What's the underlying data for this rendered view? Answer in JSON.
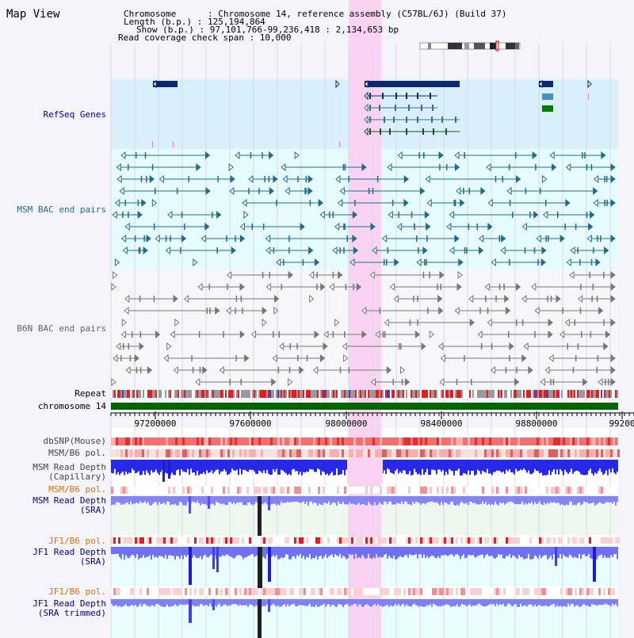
{
  "page_title": "Map View",
  "info": {
    "chromosome": "Chromosome      : Chromosome 14, reference assembly (C57BL/6J) (Build 37)",
    "length": "Length (b.p.) : 125,194,864",
    "show": "Show (b.p.) : 97,101,766-99,236,418 : 2,134,653 bp",
    "coverage": "Read coverage check span : 10,000"
  },
  "colors": {
    "refseq_band": "#d9f0fa",
    "bac_band": "#e6fbfd",
    "highlight": "#f9d3f1",
    "gene": "#0b2a6b",
    "msm_feature": "#236b88",
    "b6n_feature": "#777777",
    "chrom": "#006600",
    "depth_blue": "#2020e0",
    "depth_light": "#8888f0",
    "snp_red": "#f05050"
  },
  "tracks": [
    {
      "name": "refseq-genes-label",
      "text": "RefSeq Genes",
      "color": "#00008b",
      "top": 139
    },
    {
      "name": "msm-bac-label",
      "text": "MSM BAC end pairs",
      "color": "#236b88",
      "top": 259
    },
    {
      "name": "b6n-bac-label",
      "text": "B6N BAC end pairs",
      "color": "#666666",
      "top": 409
    },
    {
      "name": "repeat-label",
      "text": "Repeat",
      "color": "#000000",
      "top": 491
    },
    {
      "name": "chromosome-label",
      "text": "chromosome 14",
      "color": "#000000",
      "top": 507
    },
    {
      "name": "dbsnp-label",
      "text": "dbSNP(Mouse)",
      "color": "#444444",
      "top": 551
    },
    {
      "name": "msm-b6-pol-label",
      "text": "MSM/B6 pol.",
      "color": "#444444",
      "top": 566
    },
    {
      "name": "msm-depth-cap-label",
      "text": "MSM Read Depth\n(Capillary)",
      "color": "#444444",
      "top": 584
    },
    {
      "name": "msm-b6-pol-2-label",
      "text": "MSM/B6 pol.",
      "color": "#e07000",
      "top": 612
    },
    {
      "name": "msm-depth-sra-label",
      "text": "MSM Read Depth\n(SRA)",
      "color": "#00008b",
      "top": 626
    },
    {
      "name": "jf1-b6-pol-label",
      "text": "JF1/B6 pol.",
      "color": "#e07000",
      "top": 677
    },
    {
      "name": "jf1-depth-sra-label",
      "text": "JF1 Read Depth\n(SRA)",
      "color": "#00008b",
      "top": 691
    },
    {
      "name": "jf1-b6-pol-2-label",
      "text": "JF1/B6 pol.",
      "color": "#e07000",
      "top": 741
    },
    {
      "name": "jf1-depth-trim-label",
      "text": "JF1 Read Depth\n(SRA trimmed)",
      "color": "#00008b",
      "top": 756
    }
  ],
  "axis": {
    "ticks": [
      "97200000",
      "97600000",
      "98000000",
      "98400000",
      "98800000",
      "99200"
    ]
  },
  "view": {
    "start": 97101766,
    "end": 99236418
  }
}
